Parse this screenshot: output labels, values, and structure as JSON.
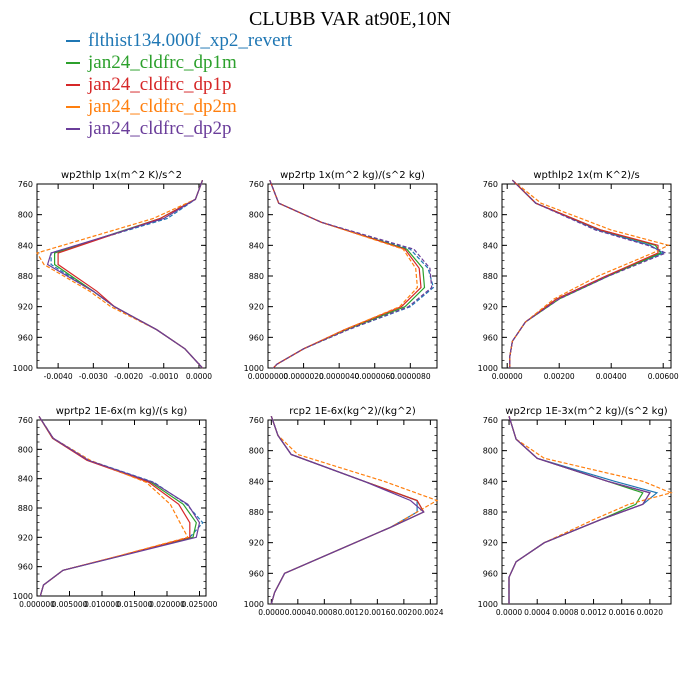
{
  "title": "CLUBB VAR at90E,10N",
  "legend": [
    {
      "label": "flthist134.000f_xp2_revert",
      "color": "#1f77b4"
    },
    {
      "label": "jan24_cldfrc_dp1m",
      "color": "#2ca02c"
    },
    {
      "label": "jan24_cldfrc_dp1p",
      "color": "#d62728"
    },
    {
      "label": "jan24_cldfrc_dp2m",
      "color": "#ff7f0e"
    },
    {
      "label": "jan24_cldfrc_dp2p",
      "color": "#6a3d9a"
    }
  ],
  "chart_data": [
    {
      "type": "line",
      "title": "wp2thlp   1x(m^2 K)/s^2",
      "xlim": [
        -0.0046,
        0.0002
      ],
      "ylim": [
        760,
        1000
      ],
      "xticks": [
        "-0.0040",
        "-0.0030",
        "-0.0020",
        "-0.0010",
        "0.0000"
      ],
      "xtick_values": [
        -0.004,
        -0.003,
        -0.002,
        -0.001,
        0.0
      ],
      "yticks": [
        760,
        800,
        840,
        880,
        920,
        960,
        1000
      ],
      "y": [
        755,
        780,
        805,
        850,
        865,
        900,
        920,
        950,
        975,
        995,
        1000
      ],
      "series": [
        {
          "x": [
            0.0001,
            -0.0001,
            -0.0009,
            -0.0042,
            -0.0042,
            -0.003,
            -0.0024,
            -0.0012,
            -0.0004,
            0.0,
            0.0001
          ],
          "dash": true
        },
        {
          "x": [
            0.0001,
            -0.0001,
            -0.0011,
            -0.0041,
            -0.0041,
            -0.003,
            -0.0024,
            -0.0012,
            -0.0004,
            0.0,
            0.0001
          ],
          "dash": false
        },
        {
          "x": [
            0.0001,
            -0.0001,
            -0.0011,
            -0.004,
            -0.004,
            -0.0029,
            -0.0024,
            -0.0012,
            -0.0004,
            0.0,
            0.0001
          ],
          "dash": false
        },
        {
          "x": [
            0.0001,
            -0.0001,
            -0.0013,
            -0.0046,
            -0.0044,
            -0.0031,
            -0.0025,
            -0.0012,
            -0.0004,
            0.0,
            0.0001
          ],
          "dash": true
        },
        {
          "x": [
            0.0001,
            -0.0001,
            -0.001,
            -0.0042,
            -0.0043,
            -0.003,
            -0.0024,
            -0.0012,
            -0.0004,
            0.0,
            0.0001
          ],
          "dash": false
        }
      ]
    },
    {
      "type": "line",
      "title": "wp2rtp   1x(m^2 kg)/(s^2 kg)",
      "xlim": [
        0,
        9.5e-06
      ],
      "ylim": [
        760,
        1000
      ],
      "xticks": [
        "0.0000000",
        "0.0000020",
        "0.0000040",
        "0.0000060",
        "0.0000080"
      ],
      "xtick_values": [
        0,
        2e-06,
        4e-06,
        6e-06,
        8e-06
      ],
      "yticks": [
        760,
        800,
        840,
        880,
        920,
        960,
        1000
      ],
      "y": [
        755,
        785,
        810,
        845,
        870,
        895,
        920,
        950,
        975,
        995,
        1000
      ],
      "series": [
        {
          "x": [
            1e-07,
            6e-07,
            3e-06,
            8e-06,
            9e-06,
            9.3e-06,
            8e-06,
            4.5e-06,
            2e-06,
            5e-07,
            3e-07
          ],
          "dash": true
        },
        {
          "x": [
            1e-07,
            6e-07,
            3e-06,
            7.8e-06,
            8.7e-06,
            8.8e-06,
            7.7e-06,
            4.4e-06,
            2e-06,
            5e-07,
            3e-07
          ],
          "dash": false
        },
        {
          "x": [
            1e-07,
            6e-07,
            3e-06,
            7.7e-06,
            8.5e-06,
            8.6e-06,
            7.5e-06,
            4.3e-06,
            2e-06,
            5e-07,
            3e-07
          ],
          "dash": false
        },
        {
          "x": [
            1e-07,
            6e-07,
            3e-06,
            7.6e-06,
            8.3e-06,
            8.4e-06,
            7.4e-06,
            4.3e-06,
            2e-06,
            5e-07,
            3e-07
          ],
          "dash": true
        },
        {
          "x": [
            1e-07,
            6e-07,
            3e-06,
            8.2e-06,
            9.1e-06,
            9.2e-06,
            7.9e-06,
            4.5e-06,
            2e-06,
            5e-07,
            3e-07
          ],
          "dash": true
        }
      ]
    },
    {
      "type": "line",
      "title": "wpthlp2   1x(m K^2)/s",
      "xlim": [
        -0.0002,
        0.0063
      ],
      "ylim": [
        760,
        1000
      ],
      "xticks": [
        "0.00000",
        "0.00200",
        "0.00400",
        "0.00600"
      ],
      "xtick_values": [
        0.0,
        0.002,
        0.004,
        0.006
      ],
      "yticks": [
        760,
        800,
        840,
        880,
        920,
        960,
        1000
      ],
      "y": [
        755,
        785,
        820,
        840,
        850,
        880,
        910,
        940,
        965,
        985,
        1000
      ],
      "series": [
        {
          "x": [
            0.0002,
            0.0011,
            0.0035,
            0.0055,
            0.006,
            0.0038,
            0.0019,
            0.0007,
            0.0002,
            0.0001,
            0.0001
          ],
          "dash": false
        },
        {
          "x": [
            0.0002,
            0.0011,
            0.0036,
            0.0057,
            0.0059,
            0.0039,
            0.002,
            0.0007,
            0.0002,
            0.0001,
            0.0001
          ],
          "dash": false
        },
        {
          "x": [
            0.0002,
            0.0011,
            0.0036,
            0.0058,
            0.0058,
            0.0038,
            0.0019,
            0.0007,
            0.0002,
            0.0001,
            0.0001
          ],
          "dash": false
        },
        {
          "x": [
            0.0002,
            0.0013,
            0.004,
            0.0062,
            0.0056,
            0.0035,
            0.0018,
            0.0007,
            0.0002,
            0.0001,
            0.0001
          ],
          "dash": true
        },
        {
          "x": [
            0.0002,
            0.0011,
            0.0034,
            0.0054,
            0.0061,
            0.0039,
            0.002,
            0.0007,
            0.0002,
            0.0001,
            0.0001
          ],
          "dash": true
        }
      ]
    },
    {
      "type": "line",
      "title": "wprtp2   1E-6x(m kg)/(s kg)",
      "xlim": [
        0,
        0.026
      ],
      "ylim": [
        760,
        1000
      ],
      "xticks": [
        "0.000000",
        "0.005000",
        "0.010000",
        "0.015000",
        "0.020000",
        "0.025000"
      ],
      "xtick_values": [
        0,
        0.005,
        0.01,
        0.015,
        0.02,
        0.025
      ],
      "yticks": [
        760,
        800,
        840,
        880,
        920,
        960,
        1000
      ],
      "y": [
        755,
        785,
        815,
        845,
        875,
        900,
        920,
        945,
        965,
        985,
        1000
      ],
      "series": [
        {
          "x": [
            0.0003,
            0.0025,
            0.008,
            0.018,
            0.023,
            0.0255,
            0.0235,
            0.013,
            0.004,
            0.001,
            0.0005
          ],
          "dash": true
        },
        {
          "x": [
            0.0003,
            0.0024,
            0.0078,
            0.0175,
            0.0225,
            0.0245,
            0.024,
            0.013,
            0.004,
            0.001,
            0.0005
          ],
          "dash": false
        },
        {
          "x": [
            0.0003,
            0.0024,
            0.0077,
            0.0172,
            0.0218,
            0.0235,
            0.0235,
            0.0128,
            0.004,
            0.001,
            0.0005
          ],
          "dash": false
        },
        {
          "x": [
            0.0003,
            0.0025,
            0.0082,
            0.0168,
            0.0205,
            0.022,
            0.0232,
            0.0127,
            0.004,
            0.001,
            0.0005
          ],
          "dash": true
        },
        {
          "x": [
            0.0003,
            0.0025,
            0.0079,
            0.0178,
            0.0232,
            0.025,
            0.0245,
            0.0131,
            0.004,
            0.001,
            0.0005
          ],
          "dash": false
        }
      ]
    },
    {
      "type": "line",
      "title": "rcp2   1E-6x(kg^2)/(kg^2)",
      "xlim": [
        -5e-05,
        0.0025
      ],
      "ylim": [
        760,
        1000
      ],
      "xticks": [
        "0.0000",
        "0.0004",
        "0.0008",
        "0.0012",
        "0.0016",
        "0.0020",
        "0.0024"
      ],
      "xtick_values": [
        0,
        0.0004,
        0.0008,
        0.0012,
        0.0016,
        0.002,
        0.0024
      ],
      "yticks": [
        760,
        800,
        840,
        880,
        920,
        960,
        1000
      ],
      "y": [
        755,
        780,
        805,
        840,
        865,
        880,
        900,
        930,
        960,
        985,
        1000
      ],
      "series": [
        {
          "x": [
            0.0,
            0.0001,
            0.0003,
            0.0014,
            0.0022,
            0.0022,
            0.0018,
            0.001,
            0.0002,
            5e-05,
            0.0
          ],
          "dash": false
        },
        {
          "x": [
            0.0,
            0.0001,
            0.0003,
            0.0014,
            0.0022,
            0.0023,
            0.0018,
            0.001,
            0.0002,
            5e-05,
            0.0
          ],
          "dash": false
        },
        {
          "x": [
            0.0,
            0.0001,
            0.0003,
            0.0014,
            0.0022,
            0.0023,
            0.0018,
            0.001,
            0.0002,
            5e-05,
            0.0
          ],
          "dash": false
        },
        {
          "x": [
            0.0,
            0.0001,
            0.0004,
            0.0017,
            0.0025,
            0.0022,
            0.0018,
            0.001,
            0.0002,
            5e-05,
            0.0
          ],
          "dash": true
        },
        {
          "x": [
            0.0,
            0.0001,
            0.0003,
            0.0014,
            0.0021,
            0.0023,
            0.0018,
            0.001,
            0.0002,
            5e-05,
            0.0
          ],
          "dash": false
        }
      ]
    },
    {
      "type": "line",
      "title": "wp2rcp   1E-3x(m^2 kg)/(s^2 kg)",
      "xlim": [
        -0.0001,
        0.0023
      ],
      "ylim": [
        760,
        1000
      ],
      "xticks": [
        "0.0000",
        "0.0004",
        "0.0008",
        "0.0012",
        "0.0016",
        "0.0020"
      ],
      "xtick_values": [
        0,
        0.0004,
        0.0008,
        0.0012,
        0.0016,
        0.002
      ],
      "yticks": [
        760,
        800,
        840,
        880,
        920,
        960,
        1000
      ],
      "y": [
        755,
        785,
        810,
        840,
        855,
        870,
        890,
        920,
        945,
        965,
        1000
      ],
      "series": [
        {
          "x": [
            0.0,
            0.0001,
            0.0004,
            0.0015,
            0.0021,
            0.0019,
            0.0013,
            0.0005,
            0.0001,
            0.0,
            0.0
          ],
          "dash": false
        },
        {
          "x": [
            0.0,
            0.0001,
            0.0004,
            0.0014,
            0.0019,
            0.0018,
            0.0013,
            0.0005,
            0.0001,
            0.0,
            0.0
          ],
          "dash": false
        },
        {
          "x": [
            0.0,
            0.0001,
            0.0004,
            0.0014,
            0.002,
            0.0019,
            0.0013,
            0.0005,
            0.0001,
            0.0,
            0.0
          ],
          "dash": false
        },
        {
          "x": [
            0.0,
            0.0001,
            0.0005,
            0.0019,
            0.0023,
            0.0017,
            0.0012,
            0.0005,
            0.0001,
            0.0,
            0.0
          ],
          "dash": true
        },
        {
          "x": [
            0.0,
            0.0001,
            0.0004,
            0.0014,
            0.002,
            0.0019,
            0.0013,
            0.0005,
            0.0001,
            0.0,
            0.0
          ],
          "dash": false
        }
      ]
    }
  ]
}
